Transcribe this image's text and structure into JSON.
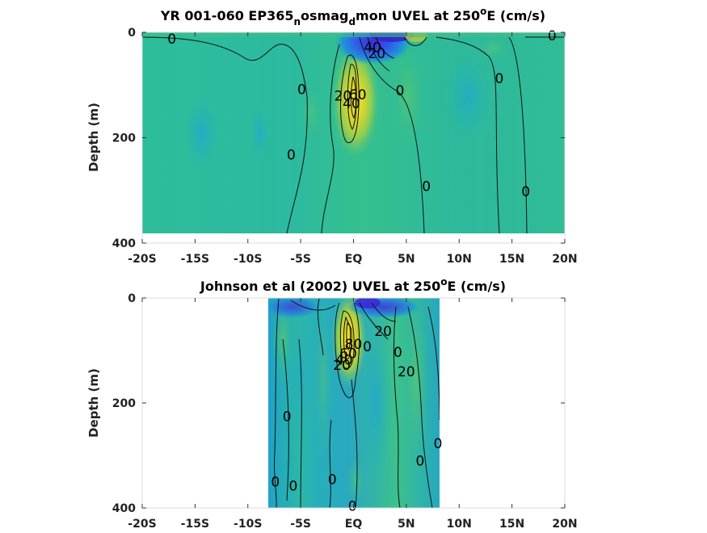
{
  "chart_data": [
    {
      "type": "heatmap",
      "subtype": "filled-contour",
      "title_main": "YR 001-060 EP365",
      "title_parts": [
        {
          "t": "YR 001-060 EP365",
          "sub": false
        },
        {
          "t": "n",
          "sub": true
        },
        {
          "t": "osmag",
          "sub": false
        },
        {
          "t": "d",
          "sub": true
        },
        {
          "t": "mon UVEL at 250",
          "sub": false
        },
        {
          "t": "o",
          "sup": true
        },
        {
          "t": "E (cm/s)",
          "sub": false
        }
      ],
      "ylabel": "Depth (m)",
      "x_ticks": [
        "-20S",
        "-15S",
        "-10S",
        "-5S",
        "EQ",
        "5N",
        "10N",
        "15N",
        "20N"
      ],
      "x_tick_values": [
        -20,
        -15,
        -10,
        -5,
        0,
        5,
        10,
        15,
        20
      ],
      "y_ticks": [
        "0",
        "200",
        "400"
      ],
      "y_tick_values": [
        0,
        200,
        400
      ],
      "xlim": [
        -20,
        20
      ],
      "ylim": [
        400,
        0
      ],
      "data_extent": {
        "lat": [
          -20,
          20
        ],
        "depth": [
          0,
          385
        ]
      },
      "features": [
        {
          "kind": "jet",
          "lat": 0.2,
          "depth": 105,
          "value": 60
        },
        {
          "kind": "westward",
          "lat": 2.5,
          "depth": 10,
          "value": -40
        }
      ],
      "contour_labels": [
        {
          "text": "0",
          "lat": -17.2,
          "depth": 12
        },
        {
          "text": "0",
          "lat": 18.8,
          "depth": 6
        },
        {
          "text": "40",
          "lat": 1.8,
          "depth": 28
        },
        {
          "text": "20",
          "lat": 2.2,
          "depth": 40
        },
        {
          "text": "0",
          "lat": -4.9,
          "depth": 108
        },
        {
          "text": "0",
          "lat": 4.4,
          "depth": 110
        },
        {
          "text": "0",
          "lat": 13.8,
          "depth": 87
        },
        {
          "text": "20",
          "lat": -1.0,
          "depth": 120
        },
        {
          "text": "40",
          "lat": -0.2,
          "depth": 135
        },
        {
          "text": "60",
          "lat": 0.4,
          "depth": 118
        },
        {
          "text": "0",
          "lat": -5.9,
          "depth": 232
        },
        {
          "text": "0",
          "lat": 6.9,
          "depth": 292
        },
        {
          "text": "0",
          "lat": 16.3,
          "depth": 302
        }
      ]
    },
    {
      "type": "heatmap",
      "subtype": "filled-contour",
      "title_main": "Johnson et al (2002) UVEL at 250",
      "title_parts": [
        {
          "t": "Johnson et al (2002) UVEL at 250",
          "sub": false
        },
        {
          "t": "o",
          "sup": true
        },
        {
          "t": "E (cm/s)",
          "sub": false
        }
      ],
      "ylabel": "Depth (m)",
      "x_ticks": [
        "-20S",
        "-15S",
        "-10S",
        "-5S",
        "EQ",
        "5N",
        "10N",
        "15N",
        "20N"
      ],
      "x_tick_values": [
        -20,
        -15,
        -10,
        -5,
        0,
        5,
        10,
        15,
        20
      ],
      "y_ticks": [
        "0",
        "200",
        "400"
      ],
      "y_tick_values": [
        0,
        200,
        400
      ],
      "xlim": [
        -20,
        20
      ],
      "ylim": [
        400,
        0
      ],
      "data_extent": {
        "lat": [
          -8,
          8.3
        ],
        "depth": [
          0,
          400
        ]
      },
      "features": [
        {
          "kind": "jet",
          "lat": -0.2,
          "depth": 75,
          "value": 80
        },
        {
          "kind": "westward",
          "lat": 1.5,
          "depth": 10,
          "value": -40
        }
      ],
      "contour_labels": [
        {
          "text": "20",
          "lat": 2.8,
          "depth": 63
        },
        {
          "text": "80",
          "lat": 0.0,
          "depth": 88
        },
        {
          "text": "60",
          "lat": -0.5,
          "depth": 105
        },
        {
          "text": "40",
          "lat": -0.9,
          "depth": 118
        },
        {
          "text": "20",
          "lat": -1.1,
          "depth": 128
        },
        {
          "text": "0",
          "lat": 1.3,
          "depth": 92
        },
        {
          "text": "0",
          "lat": 4.2,
          "depth": 103
        },
        {
          "text": "20",
          "lat": 5.0,
          "depth": 140
        },
        {
          "text": "0",
          "lat": -6.3,
          "depth": 225
        },
        {
          "text": "0",
          "lat": 8.0,
          "depth": 277
        },
        {
          "text": "0",
          "lat": 6.3,
          "depth": 310
        },
        {
          "text": "0",
          "lat": -7.4,
          "depth": 350
        },
        {
          "text": "0",
          "lat": -5.7,
          "depth": 358
        },
        {
          "text": "0",
          "lat": -2.0,
          "depth": 345
        },
        {
          "text": "0",
          "lat": -0.1,
          "depth": 396
        }
      ]
    }
  ]
}
